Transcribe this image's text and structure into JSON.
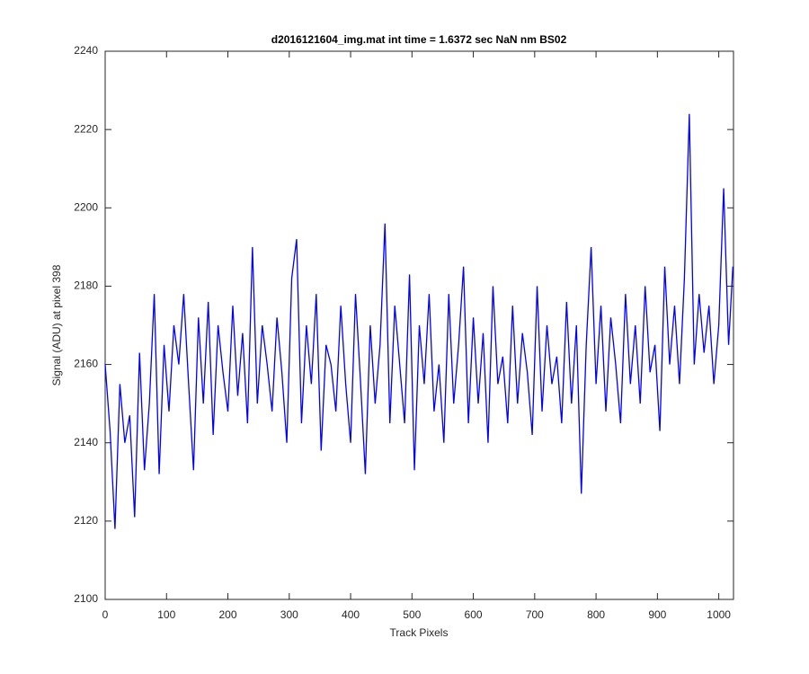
{
  "chart_data": {
    "type": "line",
    "title": "d2016121604_img.mat int time = 1.6372 sec  NaN nm BS02",
    "x_label": "Track Pixels",
    "y_label": "Signal (ADU) at pixel 398",
    "xlim": [
      0,
      1024
    ],
    "xticks": [
      0,
      100,
      200,
      300,
      400,
      500,
      600,
      700,
      800,
      900,
      1000
    ],
    "ylim": [
      2100,
      2240
    ],
    "yticks": [
      2100,
      2120,
      2140,
      2160,
      2180,
      2200,
      2220,
      2240
    ],
    "grid": false,
    "x": [
      0,
      8,
      16,
      24,
      32,
      40,
      48,
      56,
      64,
      72,
      80,
      88,
      96,
      104,
      112,
      120,
      128,
      136,
      144,
      152,
      160,
      168,
      176,
      184,
      192,
      200,
      208,
      216,
      224,
      232,
      240,
      248,
      256,
      264,
      272,
      280,
      288,
      296,
      304,
      312,
      320,
      328,
      336,
      344,
      352,
      360,
      368,
      376,
      384,
      392,
      400,
      408,
      416,
      424,
      432,
      440,
      448,
      456,
      464,
      472,
      480,
      488,
      496,
      504,
      512,
      520,
      528,
      536,
      544,
      552,
      560,
      568,
      576,
      584,
      592,
      600,
      608,
      616,
      624,
      632,
      640,
      648,
      656,
      664,
      672,
      680,
      688,
      696,
      704,
      712,
      720,
      728,
      736,
      744,
      752,
      760,
      768,
      776,
      784,
      792,
      800,
      808,
      816,
      824,
      832,
      840,
      848,
      856,
      864,
      872,
      880,
      888,
      896,
      904,
      912,
      920,
      928,
      936,
      944,
      952,
      960,
      968,
      976,
      984,
      992,
      1000,
      1008,
      1016,
      1023
    ],
    "series": [
      {
        "name": "Signal",
        "color": "#0000ff",
        "values": [
          2160,
          2143,
          2118,
          2155,
          2140,
          2147,
          2121,
          2163,
          2133,
          2150,
          2178,
          2132,
          2165,
          2148,
          2170,
          2160,
          2178,
          2155,
          2133,
          2172,
          2150,
          2176,
          2142,
          2170,
          2158,
          2148,
          2175,
          2152,
          2168,
          2145,
          2190,
          2150,
          2170,
          2160,
          2148,
          2172,
          2158,
          2140,
          2182,
          2192,
          2145,
          2170,
          2155,
          2178,
          2138,
          2165,
          2160,
          2148,
          2175,
          2155,
          2140,
          2178,
          2156,
          2132,
          2170,
          2150,
          2165,
          2196,
          2145,
          2175,
          2160,
          2145,
          2183,
          2133,
          2170,
          2155,
          2178,
          2148,
          2160,
          2140,
          2178,
          2150,
          2165,
          2185,
          2145,
          2172,
          2150,
          2168,
          2140,
          2180,
          2155,
          2162,
          2145,
          2175,
          2150,
          2168,
          2158,
          2142,
          2180,
          2148,
          2170,
          2155,
          2162,
          2145,
          2176,
          2150,
          2170,
          2127,
          2165,
          2190,
          2155,
          2175,
          2148,
          2172,
          2160,
          2145,
          2178,
          2155,
          2170,
          2150,
          2180,
          2158,
          2165,
          2143,
          2185,
          2160,
          2175,
          2155,
          2182,
          2224,
          2160,
          2178,
          2163,
          2175,
          2155,
          2170,
          2205,
          2165,
          2185
        ]
      }
    ]
  }
}
